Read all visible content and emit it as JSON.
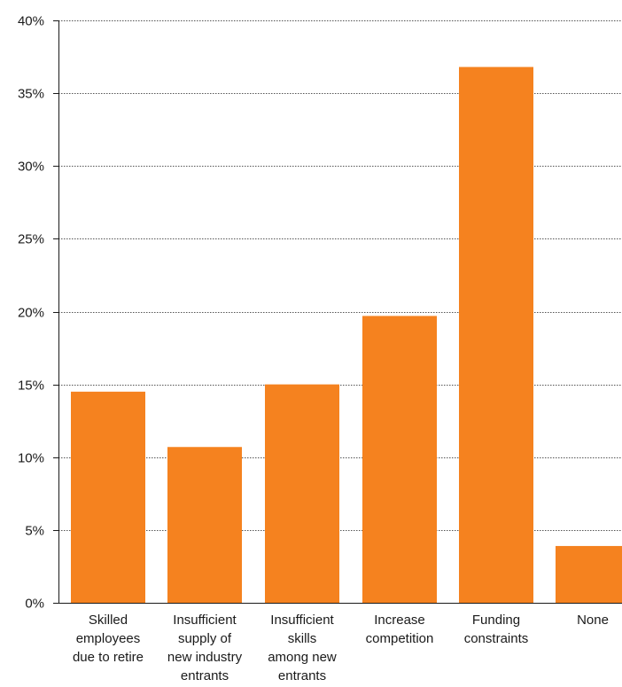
{
  "chart_data": {
    "type": "bar",
    "categories": [
      [
        "Skilled",
        "employees",
        "due to retire"
      ],
      [
        "Insufficient",
        "supply of",
        "new industry",
        "entrants"
      ],
      [
        "Insufficient",
        "skills",
        "among new",
        "entrants"
      ],
      [
        "Increase",
        "competition"
      ],
      [
        "Funding",
        "constraints"
      ],
      [
        "None"
      ]
    ],
    "values": [
      14.5,
      10.7,
      15.0,
      19.7,
      36.8,
      3.9
    ],
    "ylim": [
      0,
      40
    ],
    "yticks": [
      0,
      5,
      10,
      15,
      20,
      25,
      30,
      35,
      40
    ],
    "ytick_suffix": "%",
    "grid": true,
    "bar_color": "#F5821F",
    "title": "",
    "xlabel": "",
    "ylabel": ""
  }
}
